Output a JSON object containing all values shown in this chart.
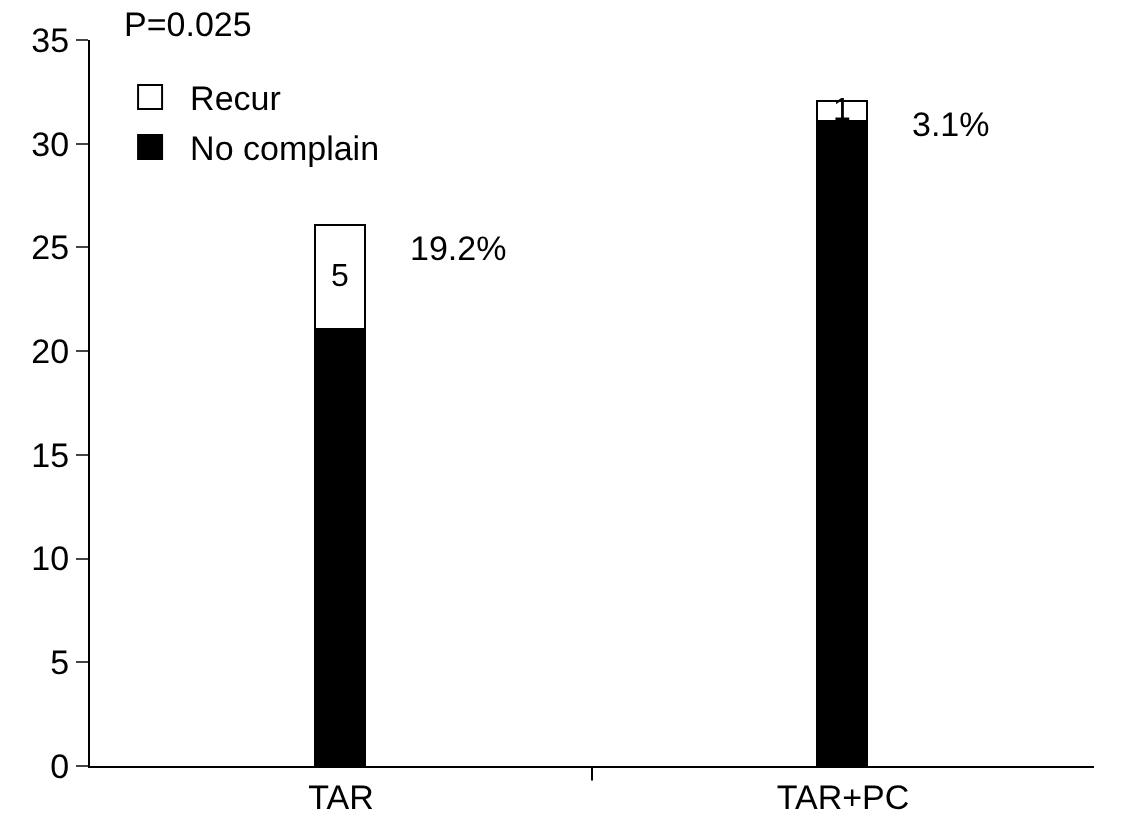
{
  "chart_data": {
    "type": "bar",
    "stacked": true,
    "categories": [
      "TAR",
      "TAR+PC"
    ],
    "series": [
      {
        "name": "No complain",
        "color": "#000000",
        "values": [
          21,
          31
        ]
      },
      {
        "name": "Recur",
        "color": "#ffffff",
        "values": [
          5,
          1
        ],
        "value_labels": [
          "5",
          "1"
        ]
      }
    ],
    "ylim": [
      0,
      35
    ],
    "yticks": [
      0,
      5,
      10,
      15,
      20,
      25,
      30,
      35
    ],
    "grid": false,
    "legend": "top left",
    "annotations": [
      "P=0.025",
      {
        "text": "19.2%",
        "x": "TAR",
        "y": 26
      },
      {
        "text": "3.1%",
        "x": "TAR+PC",
        "y": 32
      }
    ]
  }
}
